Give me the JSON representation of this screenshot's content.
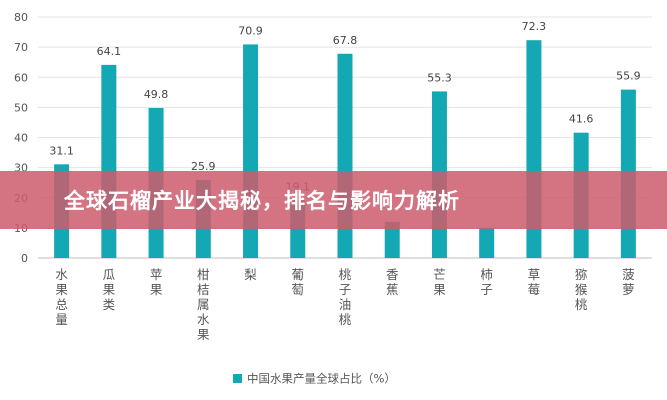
{
  "banner": {
    "title": "全球石榴产业大揭秘，排名与影响力解析"
  },
  "chart_data": {
    "type": "bar",
    "title": "",
    "xlabel": "",
    "ylabel": "",
    "ylim": [
      0,
      80
    ],
    "yticks": [
      0,
      10,
      20,
      30,
      40,
      50,
      60,
      70,
      80
    ],
    "grid": true,
    "legend_position": "bottom",
    "categories": [
      "水果总量",
      "瓜果类",
      "苹果",
      "柑桔属水果",
      "梨",
      "葡萄",
      "桃子油桃",
      "香蕉",
      "芒果",
      "柿子",
      "草莓",
      "猕猴桃",
      "菠萝"
    ],
    "series": [
      {
        "name": "中国水果产量全球占比（%）",
        "color": "#13a8b3",
        "values": [
          31.1,
          64.1,
          49.8,
          25.9,
          70.9,
          19.1,
          67.8,
          12.0,
          55.3,
          10.0,
          72.3,
          41.6,
          55.9
        ],
        "labels": [
          "31.1",
          "64.1",
          "49.8",
          "25.9",
          "70.9",
          "19.1",
          "67.8",
          "",
          "55.3",
          "",
          "72.3",
          "41.6",
          "55.9"
        ]
      }
    ]
  }
}
